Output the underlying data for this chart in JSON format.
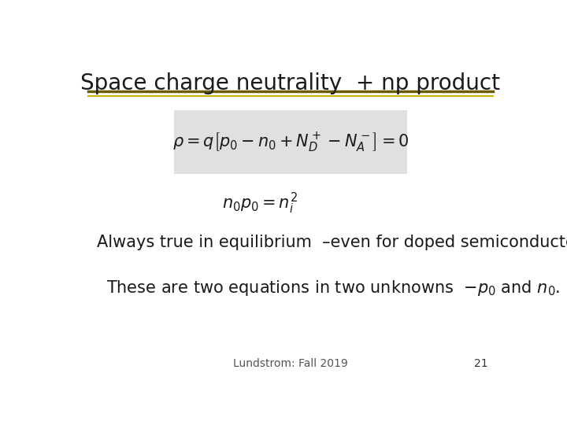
{
  "title": "Space charge neutrality  + np product",
  "title_fontsize": 20,
  "title_color": "#1a1a1a",
  "bg_color": "#ffffff",
  "line_color_top": "#6B5B00",
  "line_color_bottom": "#c8b400",
  "eq1_box_color": "#e0e0e0",
  "eq1": "$\\rho = q\\left[p_0 - n_0 + N_D^+ - N_A^-\\right] = 0$",
  "eq2": "$n_0 p_0 = n_i^2$",
  "text1": "Always true in equilibrium  –even for doped semiconductors.",
  "text2": "These are two equations in two unknowns  $-p_0$ and $n_0$.",
  "footer": "Lundstrom: Fall 2019",
  "page_num": "21",
  "eq1_fontsize": 15,
  "eq2_fontsize": 15,
  "text_fontsize": 15,
  "footer_fontsize": 10
}
